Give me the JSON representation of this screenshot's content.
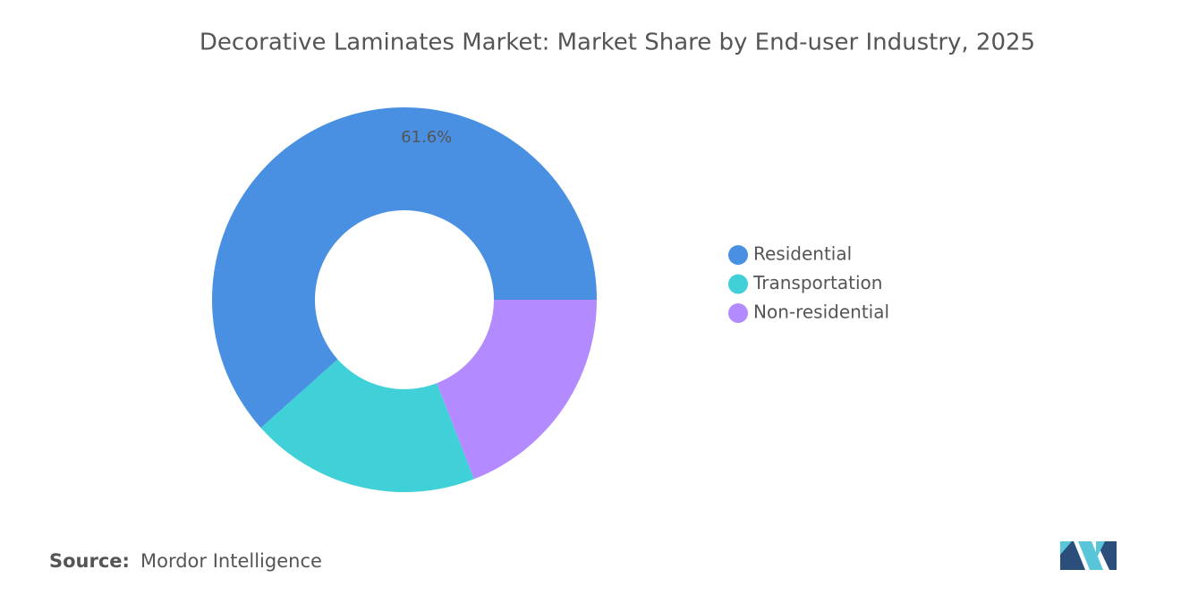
{
  "chart_data": {
    "type": "donut",
    "title": "Decorative Laminates Market: Market Share by End-user Industry, 2025",
    "categories": [
      "Residential",
      "Transportation",
      "Non-residential"
    ],
    "values": [
      61.6,
      19.3,
      19.1
    ],
    "value_labels": [
      "61.6%",
      null,
      null
    ],
    "colors": [
      "#4a90e2",
      "#40d0d8",
      "#b38aff"
    ],
    "legend": "right",
    "source_label": "Source:",
    "source": "Mordor Intelligence"
  }
}
